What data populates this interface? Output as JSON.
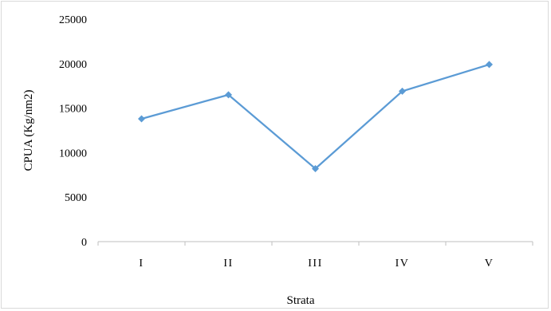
{
  "chart_data": {
    "type": "line",
    "categories": [
      "I",
      "II",
      "III",
      "IV",
      "V"
    ],
    "series": [
      {
        "values": [
          13800,
          16500,
          8200,
          16900,
          19900
        ]
      }
    ],
    "title": "",
    "xlabel": "Strata",
    "ylabel": "CPUA (Kg/nm2)",
    "ylim": [
      0,
      25000
    ],
    "yticks": [
      0,
      5000,
      10000,
      15000,
      20000,
      25000
    ],
    "grid": false,
    "legend": "none",
    "line_color": "#5b9bd5"
  }
}
